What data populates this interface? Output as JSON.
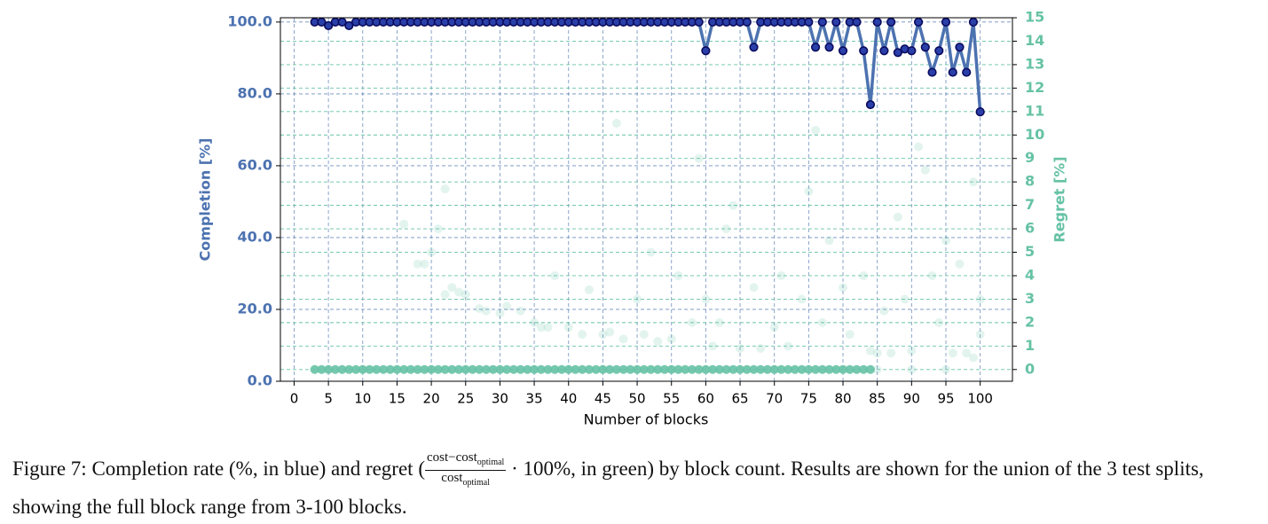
{
  "chart_data": {
    "type": "line",
    "xlabel": "Number of blocks",
    "ylabel": "Completion [%]",
    "y2label": "Regret [%]",
    "xlim": [
      -2,
      104.7
    ],
    "xticks": [
      0,
      5,
      10,
      15,
      20,
      25,
      30,
      35,
      40,
      45,
      50,
      55,
      60,
      65,
      70,
      75,
      80,
      85,
      90,
      95,
      100
    ],
    "ylim": [
      0,
      101.2
    ],
    "yticks": [
      {
        "value": 0,
        "label": "0.0"
      },
      {
        "value": 20,
        "label": "20.0"
      },
      {
        "value": 40,
        "label": "40.0"
      },
      {
        "value": 60,
        "label": "60.0"
      },
      {
        "value": 80,
        "label": "80.0"
      },
      {
        "value": 100,
        "label": "100.0"
      }
    ],
    "y2lim": [
      -0.5,
      15
    ],
    "y2ticks": [
      0,
      1,
      2,
      3,
      4,
      5,
      6,
      7,
      8,
      9,
      10,
      11,
      12,
      13,
      14,
      15
    ],
    "grid": true,
    "ycolor": "#4c72b0",
    "y2color": "#66c2a5",
    "series": [
      {
        "type": "line",
        "color": "#4c72b0",
        "marker_color": "#2a3fa8",
        "edge_color": "#0b0b5e",
        "x": [
          3,
          4,
          5,
          6,
          7,
          8,
          9,
          10,
          11,
          12,
          13,
          14,
          15,
          16,
          17,
          18,
          19,
          20,
          21,
          22,
          23,
          24,
          25,
          26,
          27,
          28,
          29,
          30,
          31,
          32,
          33,
          34,
          35,
          36,
          37,
          38,
          39,
          40,
          41,
          42,
          43,
          44,
          45,
          46,
          47,
          48,
          49,
          50,
          51,
          52,
          53,
          54,
          55,
          56,
          57,
          58,
          59,
          60,
          61,
          62,
          63,
          64,
          65,
          66,
          67,
          68,
          69,
          70,
          71,
          72,
          73,
          74,
          75,
          76,
          77,
          78,
          79,
          80,
          81,
          82,
          83,
          84,
          85,
          86,
          87,
          88,
          89,
          90,
          91,
          92,
          93,
          94,
          95,
          96,
          97,
          98,
          99,
          100
        ],
        "values": [
          100,
          100,
          99,
          100,
          100,
          99,
          100,
          100,
          100,
          100,
          100,
          100,
          100,
          100,
          100,
          100,
          100,
          100,
          100,
          100,
          100,
          100,
          100,
          100,
          100,
          100,
          100,
          100,
          100,
          100,
          100,
          100,
          100,
          100,
          100,
          100,
          100,
          100,
          100,
          100,
          100,
          100,
          100,
          100,
          100,
          100,
          100,
          100,
          100,
          100,
          100,
          100,
          100,
          100,
          100,
          100,
          100,
          92,
          100,
          100,
          100,
          100,
          100,
          100,
          93,
          100,
          100,
          100,
          100,
          100,
          100,
          100,
          100,
          93,
          100,
          93,
          100,
          92,
          100,
          100,
          92,
          77,
          100,
          92,
          100,
          91.5,
          92.5,
          92,
          100,
          93,
          86,
          92,
          100,
          86,
          93,
          86,
          100,
          75
        ]
      },
      {
        "type": "scatter",
        "axis": "y2",
        "color": "#66c2a5",
        "opacity": 0.9,
        "x": [
          3,
          4,
          5,
          6,
          7,
          8,
          9,
          10,
          11,
          12,
          13,
          14,
          15,
          16,
          17,
          18,
          19,
          20,
          21,
          22,
          23,
          24,
          25,
          26,
          27,
          28,
          29,
          30,
          31,
          32,
          33,
          34,
          35,
          36,
          37,
          38,
          39,
          40,
          41,
          42,
          43,
          44,
          45,
          46,
          47,
          48,
          49,
          50,
          51,
          52,
          53,
          54,
          55,
          56,
          57,
          58,
          59,
          60,
          61,
          62,
          63,
          64,
          65,
          66,
          67,
          68,
          69,
          70,
          71,
          72,
          73,
          74,
          75,
          76,
          77,
          78,
          79,
          80,
          81,
          82,
          83,
          84
        ],
        "values": [
          0,
          0,
          0,
          0,
          0,
          0,
          0,
          0,
          0,
          0,
          0,
          0,
          0,
          0,
          0,
          0,
          0,
          0,
          0,
          0,
          0,
          0,
          0,
          0,
          0,
          0,
          0,
          0,
          0,
          0,
          0,
          0,
          0,
          0,
          0,
          0,
          0,
          0,
          0,
          0,
          0,
          0,
          0,
          0,
          0,
          0,
          0,
          0,
          0,
          0,
          0,
          0,
          0,
          0,
          0,
          0,
          0,
          0,
          0,
          0,
          0,
          0,
          0,
          0,
          0,
          0,
          0,
          0,
          0,
          0,
          0,
          0,
          0,
          0,
          0,
          0,
          0,
          0,
          0,
          0,
          0,
          0
        ]
      },
      {
        "type": "scatter",
        "axis": "y2",
        "color": "#66c2a5",
        "opacity": 0.18,
        "x": [
          16,
          18,
          19,
          20,
          21,
          22,
          22,
          23,
          24,
          25,
          27,
          28,
          30,
          31,
          33,
          35,
          36,
          37,
          38,
          40,
          42,
          43,
          45,
          46,
          47,
          48,
          50,
          51,
          52,
          53,
          55,
          56,
          58,
          59,
          60,
          61,
          62,
          63,
          64,
          65,
          67,
          68,
          70,
          71,
          72,
          74,
          75,
          76,
          77,
          78,
          80,
          81,
          83,
          84,
          85,
          86,
          87,
          88,
          89,
          90,
          91,
          92,
          93,
          94,
          95,
          96,
          97,
          98,
          99,
          100,
          100,
          99,
          95,
          90,
          85
        ],
        "values": [
          6.2,
          4.5,
          4.5,
          5,
          6,
          7.7,
          3.2,
          3.5,
          3.3,
          3.2,
          2.6,
          2.5,
          2.4,
          2.7,
          2.5,
          2,
          1.8,
          1.8,
          4,
          1.8,
          1.5,
          3.4,
          1.5,
          1.6,
          10.5,
          1.3,
          3,
          1.5,
          5,
          1.2,
          1.3,
          4,
          2,
          9,
          3,
          1,
          2,
          6,
          7,
          0.9,
          3.5,
          0.9,
          1.8,
          4,
          1,
          3,
          7.6,
          10.2,
          2,
          5.5,
          3.5,
          1.5,
          4,
          0.8,
          0.7,
          2.5,
          0.7,
          6.5,
          3,
          0.8,
          9.5,
          8.5,
          4,
          2,
          5.5,
          0.7,
          4.5,
          0.7,
          8,
          3,
          1.5,
          0.5,
          0,
          0,
          0
        ]
      }
    ]
  },
  "caption": {
    "text_1": "Figure 7: Completion rate (%, in blue) and regret (",
    "frac_num": "cost−cost",
    "frac_num_sub": "optimal",
    "frac_den": "cost",
    "frac_den_sub": "optimal",
    "text_2": " · 100%, in green) by block count. Results are shown for the union of the 3 test splits, showing the full block range from 3-100 blocks."
  }
}
